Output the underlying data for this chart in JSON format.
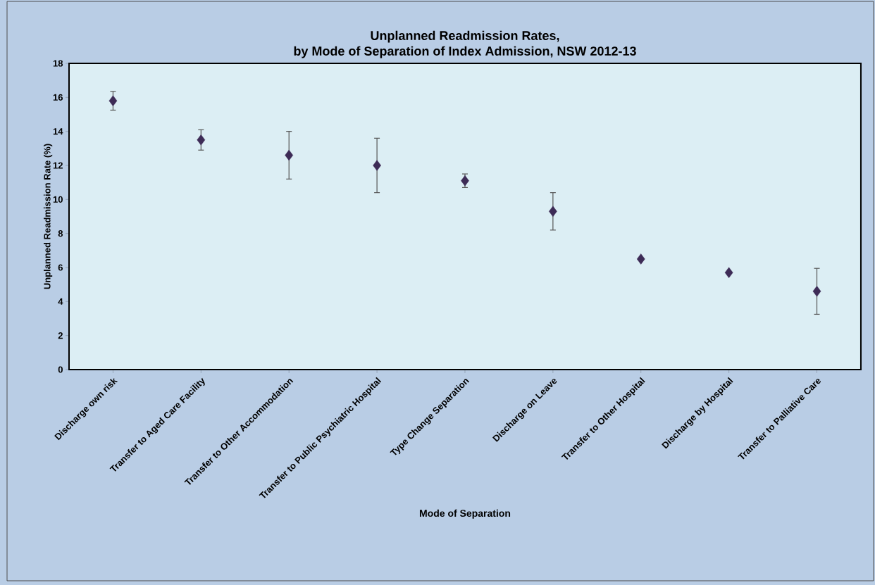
{
  "chart_data": {
    "type": "scatter",
    "title": "Unplanned Readmission Rates,",
    "subtitle": "by Mode of Separation of Index Admission, NSW 2012-13",
    "xlabel": "Mode of Separation",
    "ylabel": "Unplanned Readmission Rate (%)",
    "categories": [
      "Discharge own risk",
      "Transfer to Aged Care Facility",
      "Transfer to Other Accommodation",
      "Transfer to Public Psychiatric Hospital",
      "Type Change Separation",
      "Discharge on Leave",
      "Transfer to Other Hospital",
      "Discharge by Hospital",
      "Transfer to Palliative Care"
    ],
    "values": [
      15.8,
      13.5,
      12.6,
      12.0,
      11.1,
      9.3,
      6.5,
      5.7,
      4.6
    ],
    "errors": [
      0.55,
      0.6,
      1.4,
      1.6,
      0.4,
      1.1,
      null,
      null,
      1.35
    ],
    "color": "#3d2b56",
    "marker": "diamond",
    "ylim": [
      0,
      18
    ],
    "yticks": [
      0,
      2,
      4,
      6,
      8,
      10,
      12,
      14,
      16,
      18
    ]
  }
}
